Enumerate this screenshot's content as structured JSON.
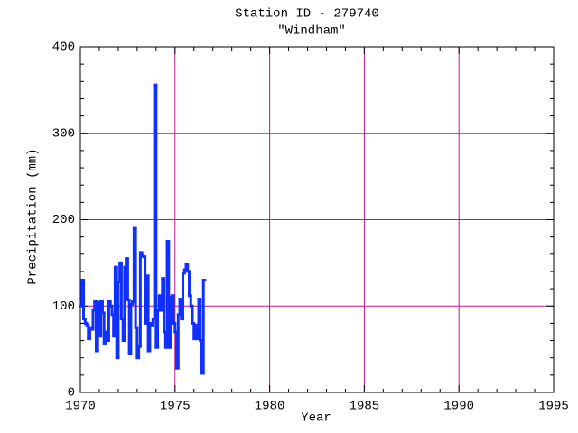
{
  "chart_data": {
    "type": "line",
    "step": true,
    "title": "Station ID - 279740",
    "subtitle": "\"Windham\"",
    "x_label": "Year",
    "y_label": "Precipitation (mm)",
    "xlim": [
      1970,
      1995
    ],
    "xticks": [
      1970,
      1975,
      1980,
      1985,
      1990,
      1995
    ],
    "ylim": [
      0,
      400
    ],
    "yticks": [
      0,
      100,
      200,
      300,
      400
    ],
    "grid": true,
    "grid_color": "#c0188c",
    "x": [
      1970,
      1970.083,
      1970.167,
      1970.25,
      1970.333,
      1970.417,
      1970.5,
      1970.583,
      1970.667,
      1970.75,
      1970.833,
      1970.917,
      1971,
      1971.083,
      1971.167,
      1971.25,
      1971.333,
      1971.417,
      1971.5,
      1971.583,
      1971.667,
      1971.75,
      1971.833,
      1971.917,
      1972,
      1972.083,
      1972.167,
      1972.25,
      1972.333,
      1972.417,
      1972.5,
      1972.583,
      1972.667,
      1972.75,
      1972.833,
      1972.917,
      1973,
      1973.083,
      1973.167,
      1973.25,
      1973.333,
      1973.417,
      1973.5,
      1973.583,
      1973.667,
      1973.75,
      1973.833,
      1973.917,
      1974,
      1974.083,
      1974.167,
      1974.25,
      1974.333,
      1974.417,
      1974.5,
      1974.583,
      1974.667,
      1974.75,
      1974.833,
      1974.917,
      1975,
      1975.083,
      1975.167,
      1975.25,
      1975.333,
      1975.417,
      1975.5,
      1975.583,
      1975.667,
      1975.75,
      1975.833,
      1975.917,
      1976,
      1976.083,
      1976.167,
      1976.25,
      1976.333,
      1976.417,
      1976.5
    ],
    "series": [
      {
        "color": "#1030ff",
        "values": [
          100,
          130,
          85,
          80,
          78,
          62,
          75,
          73,
          95,
          105,
          48,
          104,
          65,
          105,
          92,
          57,
          70,
          60,
          105,
          100,
          90,
          65,
          145,
          40,
          128,
          150,
          85,
          60,
          145,
          155,
          107,
          45,
          102,
          105,
          190,
          75,
          40,
          53,
          162,
          158,
          157,
          80,
          135,
          48,
          80,
          78,
          85,
          356,
          52,
          95,
          112,
          95,
          132,
          70,
          52,
          175,
          52,
          110,
          112,
          80,
          70,
          28,
          90,
          108,
          85,
          138,
          142,
          148,
          140,
          112,
          100,
          80,
          62,
          78,
          62,
          108,
          60,
          22,
          130
        ]
      }
    ]
  }
}
